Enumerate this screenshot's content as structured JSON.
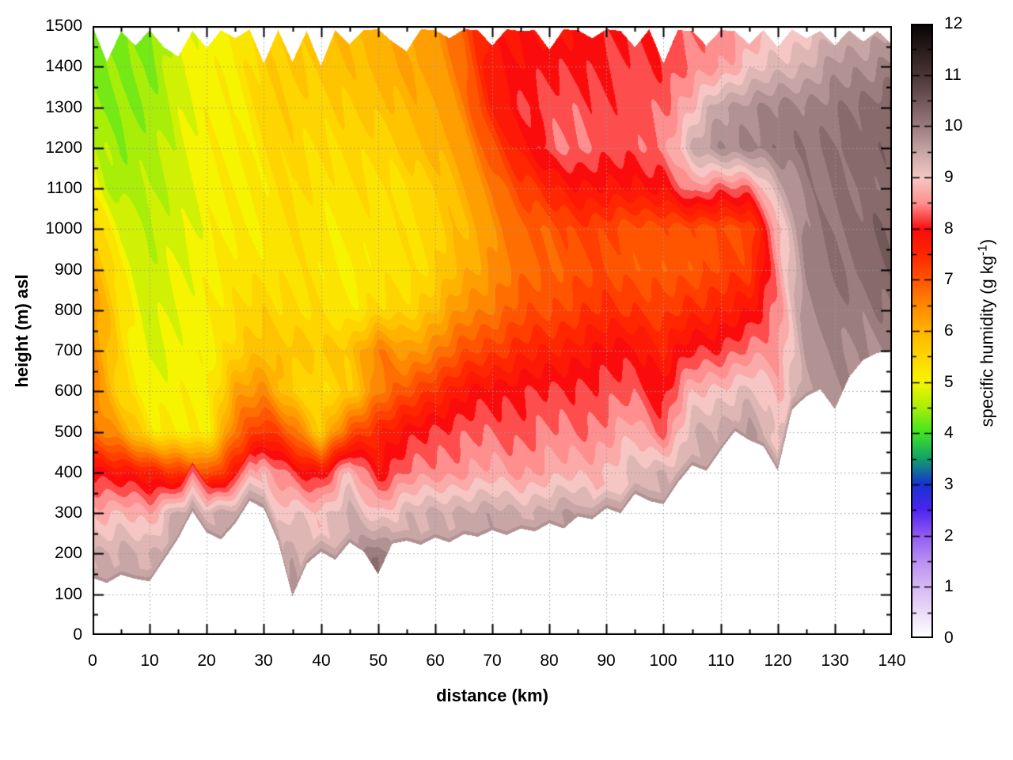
{
  "figure": {
    "background": "#ffffff",
    "frame_color": "#000000",
    "grid_color": "#9a9a9a"
  },
  "chart_data": {
    "type": "heatmap",
    "title": "",
    "xlabel": "distance (km)",
    "ylabel": "height (m) asl",
    "colorbar_label_parts": {
      "pre": "specific humidity (g kg",
      "sup": "-1",
      "post": ")"
    },
    "xlim": [
      0,
      140
    ],
    "ylim": [
      0,
      1500
    ],
    "clim": [
      0,
      12
    ],
    "grid": "dotted-front",
    "legend_position": "colorbar-right",
    "contour_interval": 0.25,
    "xticks": [
      0,
      10,
      20,
      30,
      40,
      50,
      60,
      70,
      80,
      90,
      100,
      110,
      120,
      130,
      140
    ],
    "yticks": [
      0,
      100,
      200,
      300,
      400,
      500,
      600,
      700,
      800,
      900,
      1000,
      1100,
      1200,
      1300,
      1400,
      1500
    ],
    "cticks": [
      0,
      1,
      2,
      3,
      4,
      5,
      6,
      7,
      8,
      9,
      10,
      11,
      12
    ],
    "x_minor_step": 5,
    "y_minor_step": 50,
    "c_minor_step": 0.5,
    "distances": [
      0,
      5,
      10,
      15,
      20,
      25,
      30,
      35,
      40,
      45,
      50,
      55,
      60,
      65,
      70,
      75,
      80,
      85,
      90,
      95,
      100,
      105,
      110,
      115,
      120,
      125,
      130,
      135,
      140
    ],
    "heights": [
      0,
      100,
      200,
      300,
      400,
      500,
      600,
      700,
      800,
      900,
      1000,
      1100,
      1200,
      1300,
      1400,
      1500
    ],
    "values": [
      [
        null,
        null,
        null,
        null,
        null,
        null,
        null,
        null,
        null,
        null,
        null,
        null,
        null,
        null,
        null,
        null,
        null,
        null,
        null,
        null,
        null,
        null,
        null,
        null,
        null,
        null,
        null,
        null,
        null
      ],
      [
        null,
        null,
        null,
        null,
        null,
        null,
        null,
        9.7,
        null,
        null,
        null,
        null,
        null,
        null,
        null,
        null,
        null,
        null,
        null,
        null,
        null,
        null,
        null,
        null,
        null,
        null,
        null,
        null,
        null
      ],
      [
        9.4,
        9.5,
        9.3,
        null,
        null,
        null,
        null,
        9.5,
        null,
        null,
        10.2,
        null,
        null,
        null,
        null,
        null,
        null,
        null,
        null,
        null,
        null,
        null,
        null,
        null,
        null,
        null,
        null,
        null,
        null
      ],
      [
        8.8,
        8.9,
        8.6,
        9.6,
        9.3,
        9.6,
        null,
        9.1,
        9.0,
        9.4,
        8.9,
        9.3,
        9.4,
        9.5,
        9.5,
        9.4,
        9.5,
        9.6,
        null,
        null,
        null,
        null,
        null,
        null,
        null,
        null,
        null,
        null,
        null
      ],
      [
        8.1,
        7.8,
        7.7,
        7.4,
        6.9,
        7.8,
        8.8,
        8.2,
        7.9,
        8.9,
        8.0,
        8.4,
        8.5,
        8.6,
        8.7,
        8.6,
        8.7,
        8.8,
        8.9,
        9.2,
        9.4,
        null,
        null,
        null,
        null,
        null,
        null,
        null,
        null
      ],
      [
        6.8,
        6.2,
        5.3,
        5.1,
        5.0,
        6.8,
        7.4,
        6.9,
        5.6,
        7.0,
        7.6,
        7.9,
        8.2,
        8.3,
        8.3,
        8.3,
        8.4,
        8.4,
        8.5,
        8.8,
        8.3,
        9.3,
        9.5,
        9.7,
        9.0,
        null,
        null,
        null,
        null
      ],
      [
        6.6,
        5.4,
        5.0,
        5.0,
        5.0,
        6.2,
        6.4,
        5.6,
        5.3,
        5.6,
        6.6,
        7.0,
        7.5,
        7.8,
        8.0,
        8.1,
        8.1,
        8.2,
        8.2,
        8.3,
        8.0,
        8.8,
        9.0,
        9.2,
        8.8,
        9.6,
        9.8,
        null,
        null
      ],
      [
        6.4,
        5.4,
        4.8,
        4.9,
        5.1,
        5.5,
        5.8,
        5.8,
        5.6,
        5.8,
        6.6,
        6.2,
        6.6,
        7.0,
        7.3,
        7.5,
        7.6,
        7.8,
        7.9,
        8.0,
        7.6,
        8.1,
        8.2,
        8.4,
        8.6,
        9.7,
        9.9,
        9.9,
        9.8
      ],
      [
        6.3,
        5.4,
        4.7,
        4.9,
        5.1,
        5.3,
        5.6,
        5.4,
        5.3,
        5.2,
        5.4,
        5.5,
        5.9,
        6.4,
        6.7,
        7.0,
        7.1,
        7.3,
        7.4,
        7.4,
        7.2,
        7.5,
        7.6,
        7.8,
        8.5,
        9.8,
        10.1,
        10.0,
        10.1
      ],
      [
        6.0,
        5.2,
        4.6,
        4.9,
        5.1,
        5.2,
        5.3,
        5.3,
        5.2,
        5.1,
        5.2,
        5.3,
        5.5,
        6.0,
        6.4,
        6.7,
        6.9,
        7.0,
        7.1,
        7.0,
        6.9,
        7.0,
        7.2,
        7.2,
        8.6,
        9.9,
        10.2,
        10.2,
        10.3
      ],
      [
        5.6,
        4.9,
        4.6,
        4.8,
        5.0,
        5.1,
        5.2,
        5.3,
        5.2,
        5.2,
        5.2,
        5.4,
        5.5,
        5.9,
        6.4,
        6.8,
        7.0,
        7.2,
        7.2,
        7.0,
        7.0,
        7.1,
        7.0,
        7.1,
        8.8,
        9.9,
        10.2,
        10.2,
        10.4
      ],
      [
        5.0,
        4.5,
        4.5,
        4.8,
        5.0,
        5.1,
        5.2,
        5.4,
        5.3,
        5.3,
        5.3,
        5.4,
        5.6,
        6.1,
        6.6,
        7.2,
        7.6,
        7.8,
        7.9,
        7.8,
        7.9,
        8.6,
        8.2,
        8.4,
        9.4,
        10.0,
        10.2,
        10.1,
        10.3
      ],
      [
        4.8,
        4.4,
        4.5,
        4.8,
        5.0,
        5.1,
        5.3,
        5.5,
        5.4,
        5.4,
        5.5,
        5.7,
        5.9,
        6.3,
        7.0,
        7.8,
        8.3,
        8.4,
        8.3,
        8.2,
        8.5,
        9.4,
        9.8,
        10.0,
        10.0,
        10.1,
        10.2,
        10.2,
        10.4
      ],
      [
        4.4,
        4.3,
        4.4,
        4.8,
        5.0,
        5.1,
        5.4,
        5.6,
        5.5,
        5.6,
        5.8,
        5.9,
        6.1,
        6.6,
        7.6,
        8.2,
        8.2,
        8.3,
        8.2,
        8.2,
        8.4,
        8.8,
        9.6,
        9.8,
        9.9,
        10.0,
        10.0,
        10.2,
        10.4
      ],
      [
        4.3,
        4.3,
        4.4,
        4.8,
        5.0,
        5.2,
        5.5,
        5.7,
        5.7,
        5.8,
        6.0,
        6.1,
        6.3,
        6.8,
        7.8,
        8.0,
        8.0,
        8.1,
        8.1,
        8.2,
        8.2,
        8.4,
        8.6,
        9.0,
        9.2,
        9.4,
        9.7,
        9.8,
        10.0
      ],
      [
        4.2,
        4.2,
        4.3,
        4.8,
        5.0,
        5.2,
        5.5,
        5.8,
        5.8,
        5.9,
        6.0,
        6.1,
        6.4,
        7.0,
        7.8,
        7.9,
        7.8,
        7.9,
        8.0,
        8.1,
        8.1,
        8.3,
        8.5,
        8.6,
        8.8,
        9.0,
        9.2,
        9.4,
        9.6
      ]
    ],
    "surface_step_km": 2.5,
    "surface_height": [
      140,
      128,
      148,
      138,
      132,
      185,
      238,
      305,
      252,
      235,
      275,
      330,
      312,
      230,
      95,
      175,
      205,
      185,
      228,
      205,
      150,
      225,
      232,
      222,
      240,
      228,
      248,
      242,
      258,
      246,
      262,
      255,
      275,
      262,
      292,
      285,
      312,
      300,
      348,
      330,
      322,
      375,
      418,
      404,
      455,
      502,
      480,
      465,
      405,
      555,
      588,
      605,
      556,
      635,
      678,
      695,
      698
    ],
    "top_boundary": [
      1500,
      1412,
      1488,
      1452,
      1490,
      1448,
      1425,
      1488,
      1446,
      1490,
      1470,
      1492,
      1408,
      1490,
      1412,
      1488,
      1402,
      1490,
      1455,
      1490,
      1492,
      1462,
      1438,
      1492,
      1490,
      1470,
      1492,
      1490,
      1452,
      1492,
      1488,
      1490,
      1442,
      1492,
      1490,
      1470,
      1492,
      1488,
      1448,
      1492,
      1408,
      1490,
      1488,
      1452,
      1490,
      1488,
      1455,
      1490,
      1448,
      1492,
      1470,
      1488,
      1452,
      1490,
      1462,
      1488,
      1455
    ],
    "palette": [
      [
        0.0,
        "#ffffff"
      ],
      [
        0.5,
        "#ead9f7"
      ],
      [
        1.0,
        "#d4b6f3"
      ],
      [
        1.5,
        "#b78df0"
      ],
      [
        2.0,
        "#9058f1"
      ],
      [
        2.5,
        "#4b24f0"
      ],
      [
        3.0,
        "#1534cf"
      ],
      [
        3.5,
        "#13a169"
      ],
      [
        4.0,
        "#3fe422"
      ],
      [
        4.5,
        "#a9ee08"
      ],
      [
        5.0,
        "#f7f400"
      ],
      [
        5.5,
        "#ffd500"
      ],
      [
        6.0,
        "#ffb300"
      ],
      [
        6.5,
        "#ff8800"
      ],
      [
        7.0,
        "#ff5500"
      ],
      [
        7.5,
        "#ff2600"
      ],
      [
        8.0,
        "#fb0c0c"
      ],
      [
        8.5,
        "#ff8e8e"
      ],
      [
        9.0,
        "#f5c6c3"
      ],
      [
        9.5,
        "#c8a6a6"
      ],
      [
        10.0,
        "#9c7d7d"
      ],
      [
        10.5,
        "#735858"
      ],
      [
        11.0,
        "#4b3636"
      ],
      [
        11.5,
        "#2a1c1c"
      ],
      [
        12.0,
        "#090404"
      ]
    ]
  }
}
